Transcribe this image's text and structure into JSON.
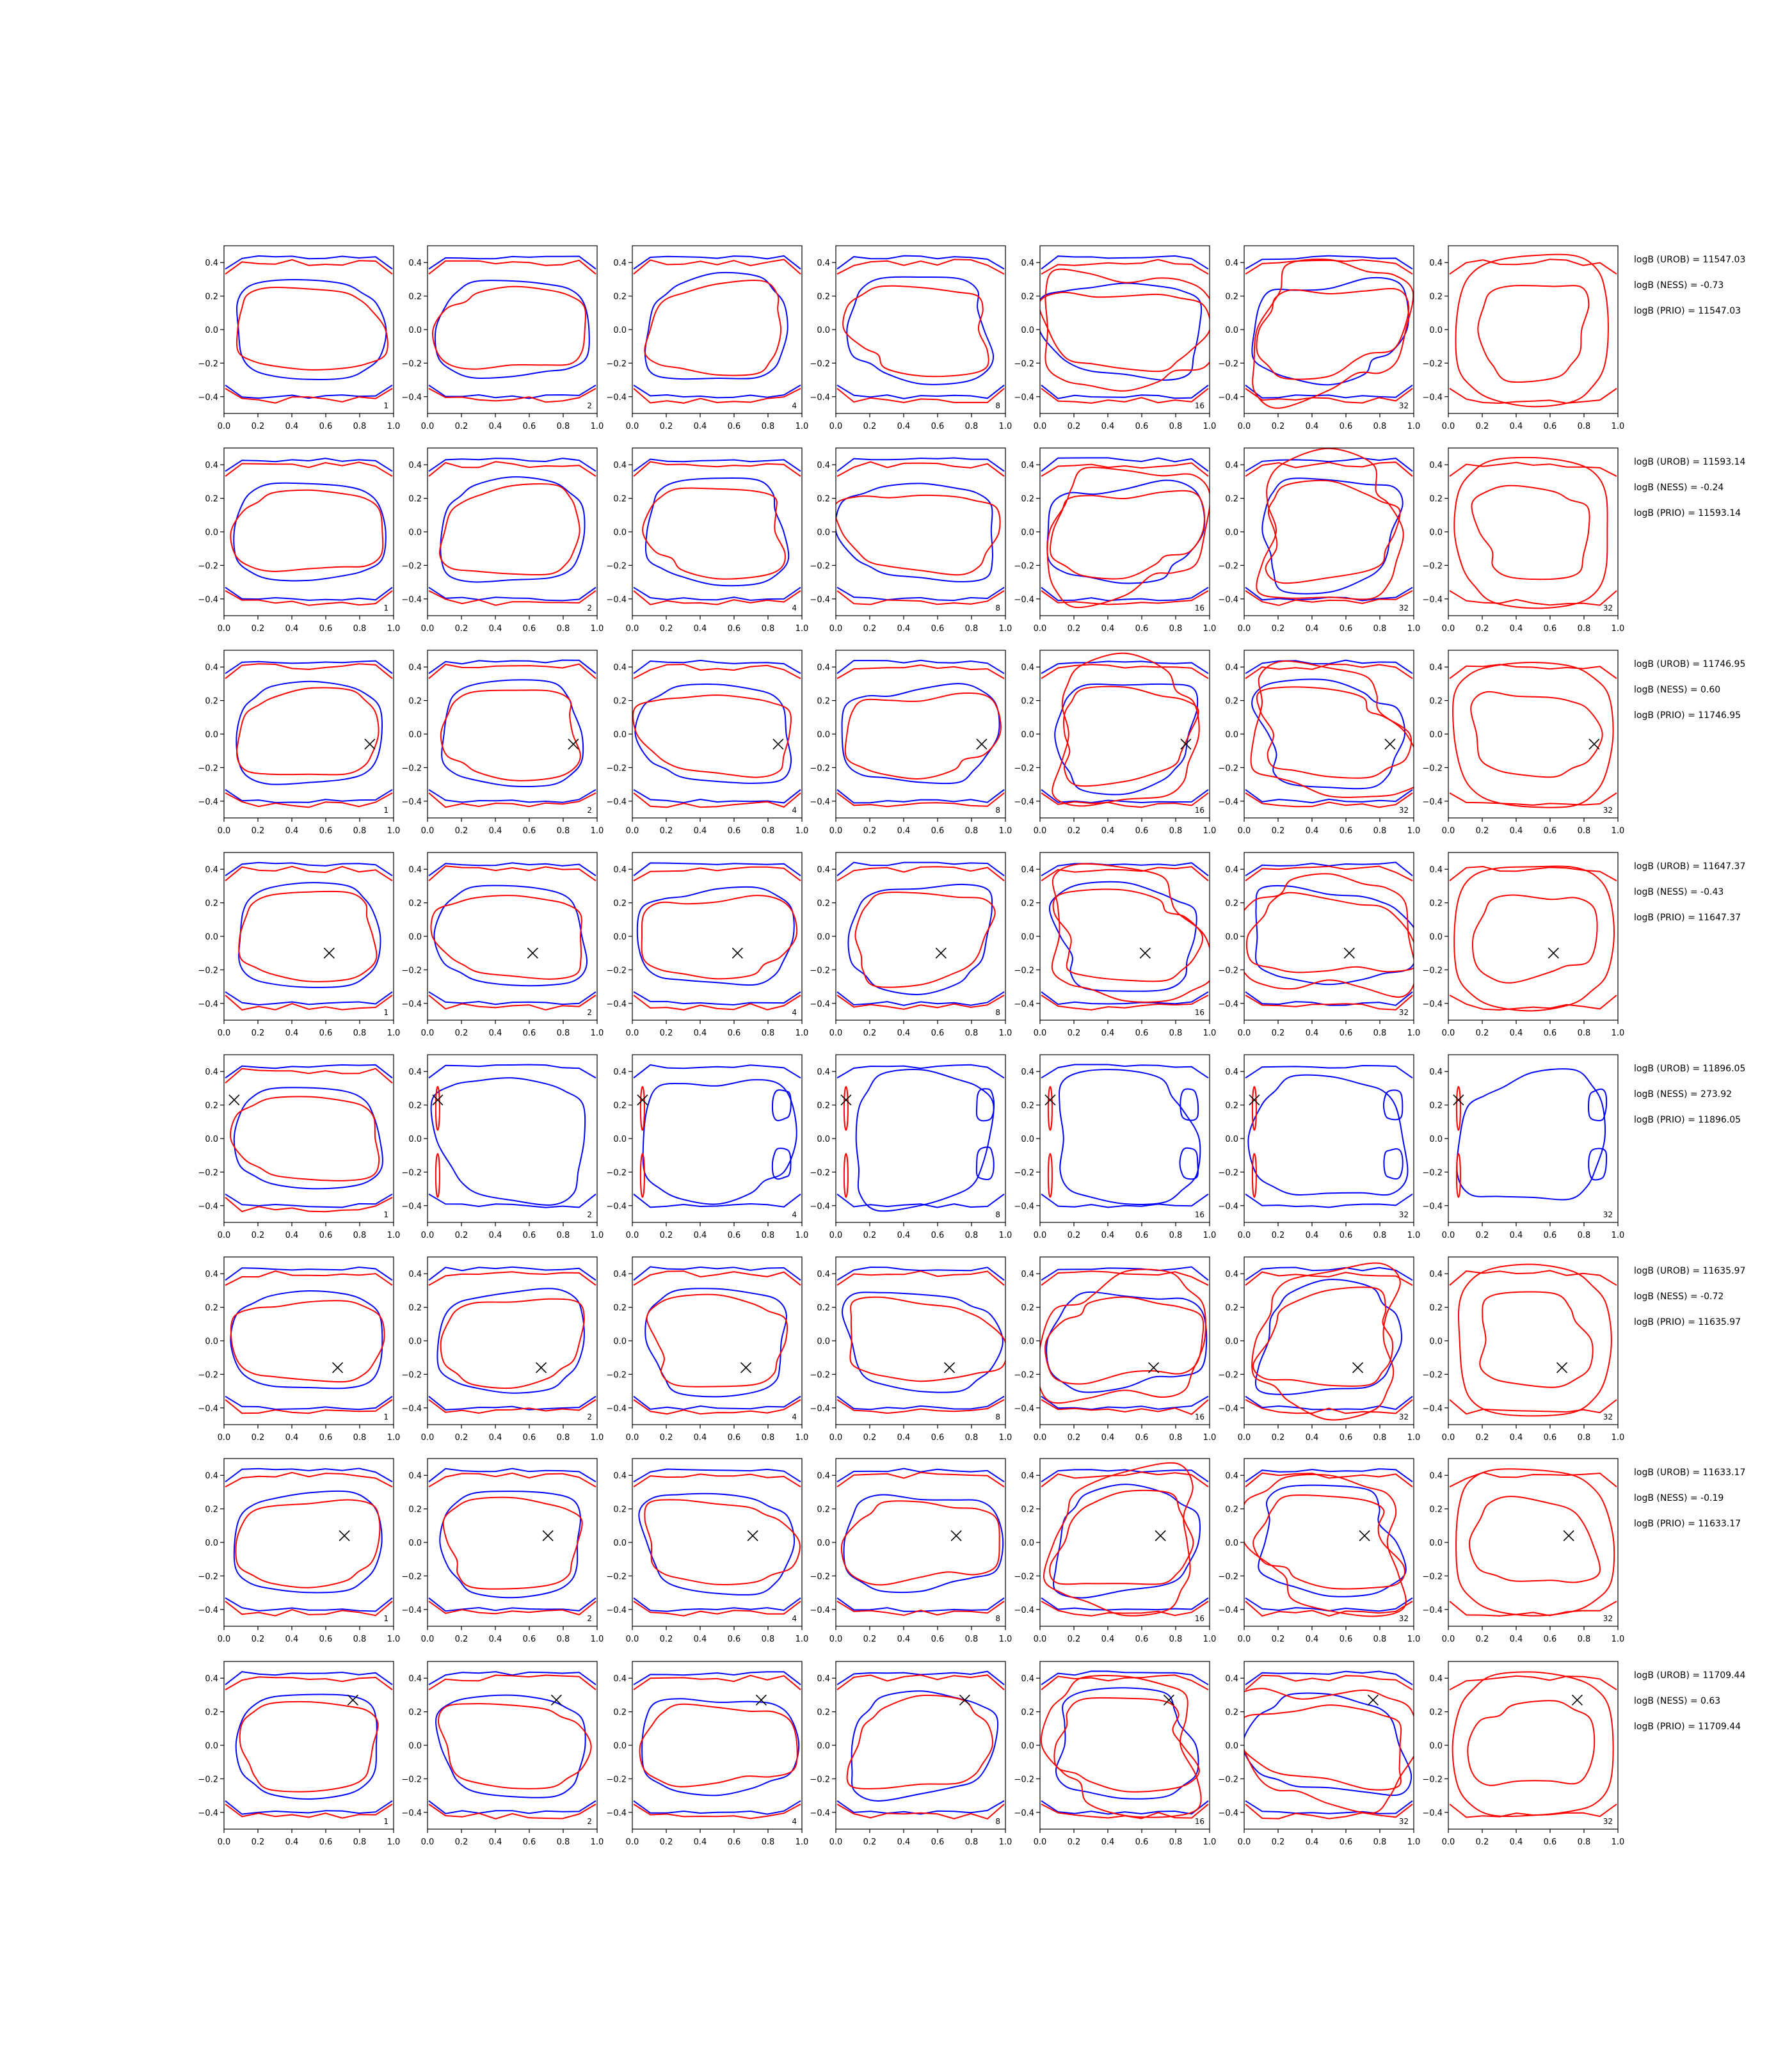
{
  "chart_data": {
    "type": "contour-grid",
    "title": "",
    "xlabel": "",
    "ylabel": "",
    "xlim": [
      0.0,
      1.0
    ],
    "ylim": [
      -0.5,
      0.5
    ],
    "x_ticks": [
      "0.0",
      "0.2",
      "0.4",
      "0.6",
      "0.8",
      "1.0"
    ],
    "y_ticks": [
      "0.4",
      "0.2",
      "0.0",
      "−0.2",
      "−0.4"
    ],
    "y_tick_values": [
      0.4,
      0.2,
      0.0,
      -0.2,
      -0.4
    ],
    "x_tick_values": [
      0.0,
      0.2,
      0.4,
      0.6,
      0.8,
      1.0
    ],
    "grid": false,
    "colors": {
      "blue": "#0000ff",
      "red": "#ff0000",
      "marker": "#000000"
    },
    "column_labels": [
      "1",
      "2",
      "4",
      "8",
      "16",
      "32",
      "32"
    ],
    "rows": [
      {
        "marker": null,
        "annotations": [
          "logB (UROB) = 11547.03",
          "logB (NESS) = -0.73",
          "logB (PRIO) = 11547.03"
        ],
        "panel_labels": [
          "1",
          "2",
          "4",
          "8",
          "16",
          "32",
          ""
        ]
      },
      {
        "marker": null,
        "annotations": [
          "logB (UROB) = 11593.14",
          "logB (NESS) = -0.24",
          "logB (PRIO) = 11593.14"
        ],
        "panel_labels": [
          "1",
          "2",
          "4",
          "8",
          "16",
          "32",
          "32"
        ]
      },
      {
        "marker": [
          0.86,
          -0.06
        ],
        "annotations": [
          "logB (UROB) = 11746.95",
          "logB (NESS) = 0.60",
          "logB (PRIO) = 11746.95"
        ],
        "panel_labels": [
          "1",
          "2",
          "4",
          "8",
          "16",
          "32",
          "32"
        ]
      },
      {
        "marker": [
          0.62,
          -0.1
        ],
        "annotations": [
          "logB (UROB) = 11647.37",
          "logB (NESS) = -0.43",
          "logB (PRIO) = 11647.37"
        ],
        "panel_labels": [
          "1",
          "2",
          "4",
          "8",
          "16",
          "32",
          ""
        ]
      },
      {
        "marker": [
          0.06,
          0.23
        ],
        "annotations": [
          "logB (UROB) = 11896.05",
          "logB (NESS) = 273.92",
          "logB (PRIO) = 11896.05"
        ],
        "panel_labels": [
          "1",
          "2",
          "4",
          "8",
          "16",
          "32",
          "32"
        ]
      },
      {
        "marker": [
          0.67,
          -0.16
        ],
        "annotations": [
          "logB (UROB) = 11635.97",
          "logB (NESS) = -0.72",
          "logB (PRIO) = 11635.97"
        ],
        "panel_labels": [
          "1",
          "2",
          "4",
          "8",
          "16",
          "32",
          "32"
        ]
      },
      {
        "marker": [
          0.71,
          0.04
        ],
        "annotations": [
          "logB (UROB) = 11633.17",
          "logB (NESS) = -0.19",
          "logB (PRIO) = 11633.17"
        ],
        "panel_labels": [
          "1",
          "2",
          "4",
          "8",
          "16",
          "32",
          "32"
        ]
      },
      {
        "marker": [
          0.76,
          0.27
        ],
        "annotations": [
          "logB (UROB) = 11709.44",
          "logB (NESS) = 0.63",
          "logB (PRIO) = 11709.44"
        ],
        "panel_labels": [
          "1",
          "2",
          "4",
          "8",
          "16",
          "32",
          "32"
        ]
      }
    ]
  }
}
